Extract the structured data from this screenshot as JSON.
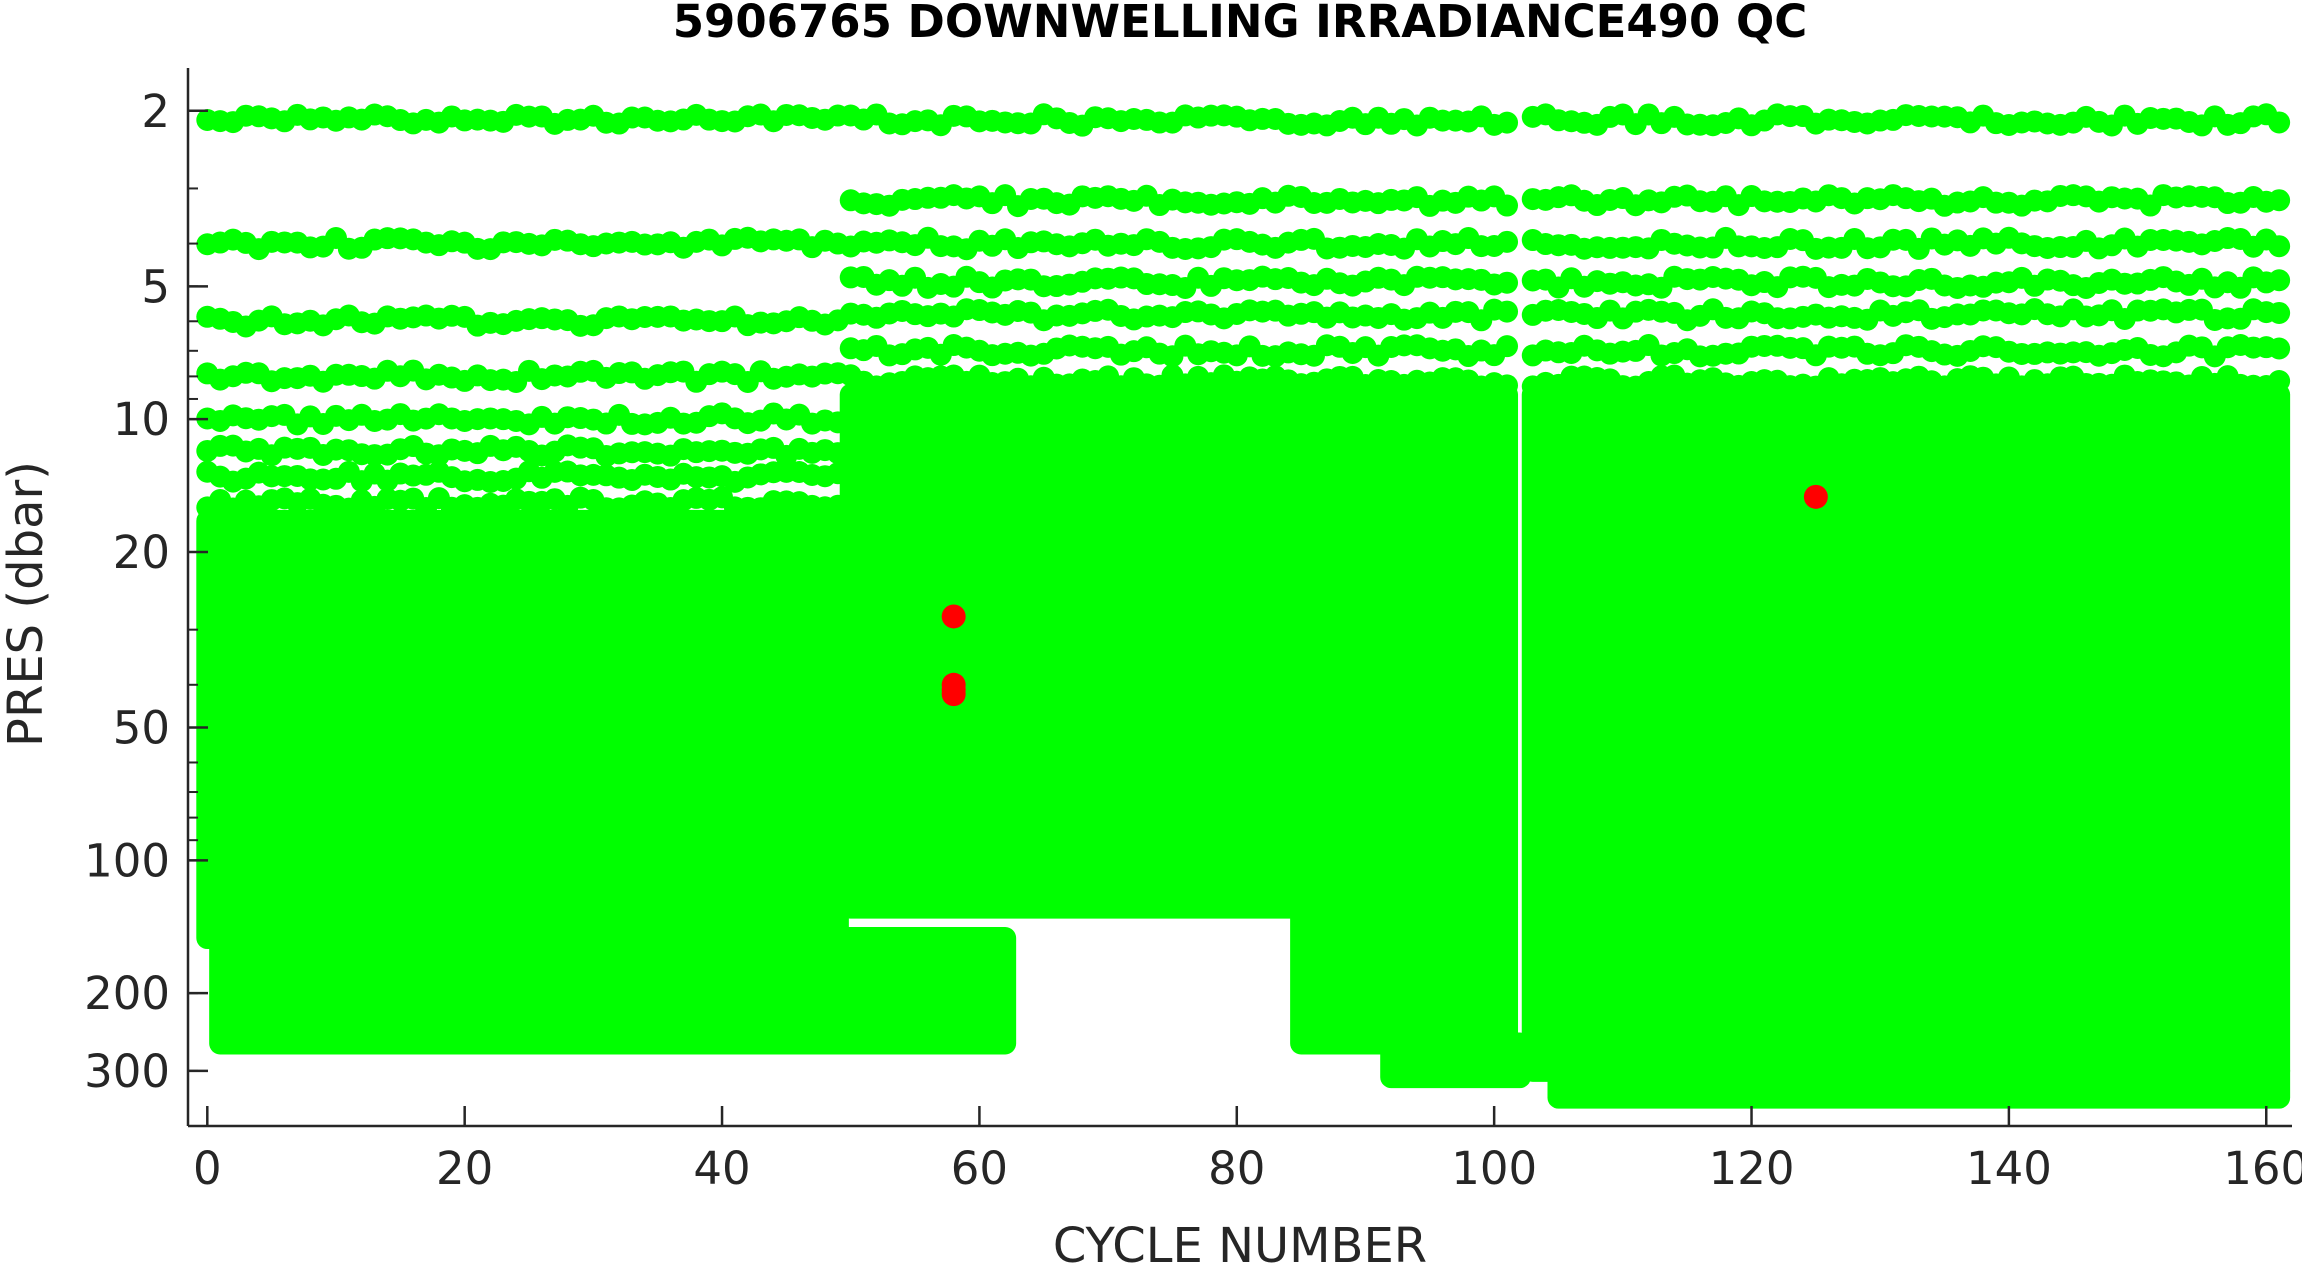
{
  "chart_data": {
    "type": "scatter",
    "title": "5906765  DOWNWELLING IRRADIANCE490 QC",
    "xlabel": "CYCLE NUMBER",
    "ylabel": "PRES (dbar)",
    "xlim": [
      -1.5,
      162
    ],
    "ylim": [
      1.6,
      400
    ],
    "yscale": "log",
    "yaxis_reversed": true,
    "x_ticks": [
      0,
      20,
      40,
      60,
      80,
      100,
      120,
      140,
      160
    ],
    "y_ticks": [
      2,
      5,
      10,
      20,
      50,
      100,
      200,
      300
    ],
    "grid": false,
    "legend": "none",
    "colors": {
      "good": "#00ff00",
      "bad": "#ff0000"
    },
    "series": [
      {
        "name": "",
        "color": "#00ff00",
        "segments": [
          {
            "x_range": [
              0,
              49
            ],
            "levels": [
              2.1,
              4.0,
              6.0,
              8.0,
              10.0,
              11.8,
              13.5,
              15.5
            ],
            "dense_top": 17,
            "dense_bottom": 150
          },
          {
            "x_range": [
              1,
              62
            ],
            "dense_top": 150,
            "dense_bottom": 260
          },
          {
            "x_range": [
              50,
              101
            ],
            "levels": [
              2.1,
              3.2,
              4.0,
              4.9,
              5.8,
              7.0,
              8.2
            ],
            "dense_top": 8.8,
            "dense_bottom": 128
          },
          {
            "x_range": [
              85,
              101
            ],
            "dense_top": 128,
            "dense_bottom": 260
          },
          {
            "x_range": [
              92,
              102
            ],
            "dense_top": 260,
            "dense_bottom": 310
          },
          {
            "x_range": [
              103,
              161
            ],
            "levels": [
              2.1,
              3.2,
              4.0,
              4.9,
              5.8,
              7.0,
              8.2
            ],
            "dense_top": 8.8,
            "dense_bottom": 300
          },
          {
            "x_range": [
              105,
              161
            ],
            "dense_top": 300,
            "dense_bottom": 345
          }
        ]
      },
      {
        "name": "",
        "color": "#ff0000",
        "points": [
          {
            "x": 58,
            "y": 28
          },
          {
            "x": 58,
            "y": 40
          },
          {
            "x": 58,
            "y": 41
          },
          {
            "x": 58,
            "y": 42
          },
          {
            "x": 125,
            "y": 15
          }
        ]
      }
    ]
  }
}
